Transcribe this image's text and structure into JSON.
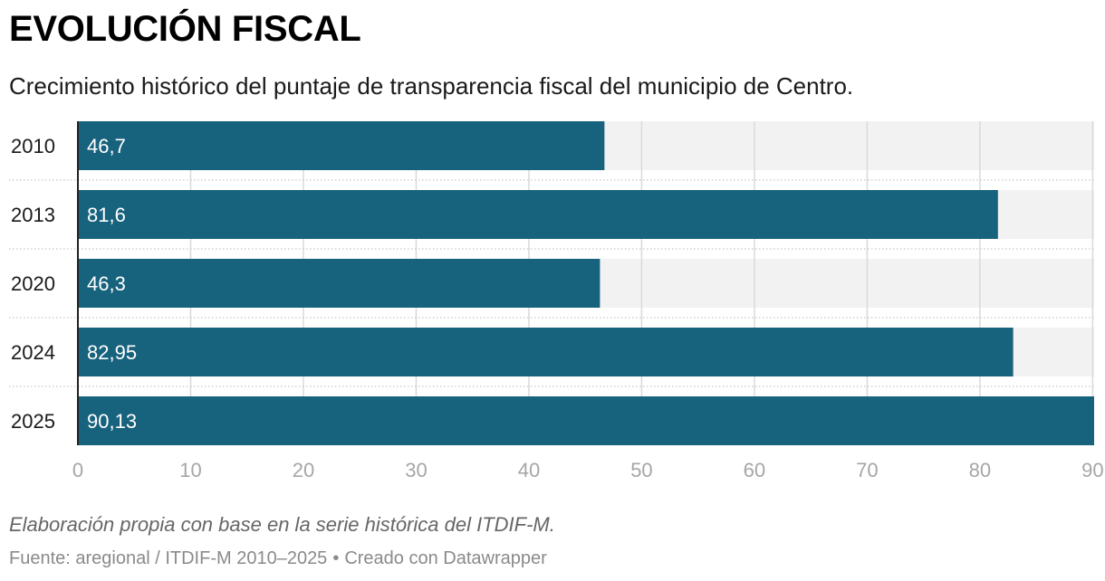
{
  "header": {
    "title": "EVOLUCIÓN FISCAL",
    "subtitle": "Crecimiento histórico del puntaje de transparencia fiscal del municipio de Centro."
  },
  "footer": {
    "notes": "Elaboración propia con base en la serie histórica del ITDIF-M.",
    "source": "Fuente: aregional / ITDIF-M 2010–2025",
    "separator": "•",
    "credit": "Creado con Datawrapper"
  },
  "colors": {
    "bar": "#17627c",
    "background_band": "#f2f2f2",
    "grid": "#d9d9d9",
    "axis_labels": "#a6a6a6",
    "bar_value_text": "#ffffff"
  },
  "chart_data": {
    "type": "bar",
    "orientation": "horizontal",
    "categories": [
      "2010",
      "2013",
      "2020",
      "2024",
      "2025"
    ],
    "values": [
      46.7,
      81.6,
      46.3,
      82.95,
      90.13
    ],
    "value_labels": [
      "46,7",
      "81,6",
      "46,3",
      "82,95",
      "90,13"
    ],
    "xlim": [
      0,
      90.13
    ],
    "xticks": [
      0,
      10,
      20,
      30,
      40,
      50,
      60,
      70,
      80,
      90
    ],
    "xtick_labels": [
      "0",
      "10",
      "20",
      "30",
      "40",
      "50",
      "60",
      "70",
      "80",
      "90"
    ],
    "grid": true,
    "legend": "none"
  }
}
